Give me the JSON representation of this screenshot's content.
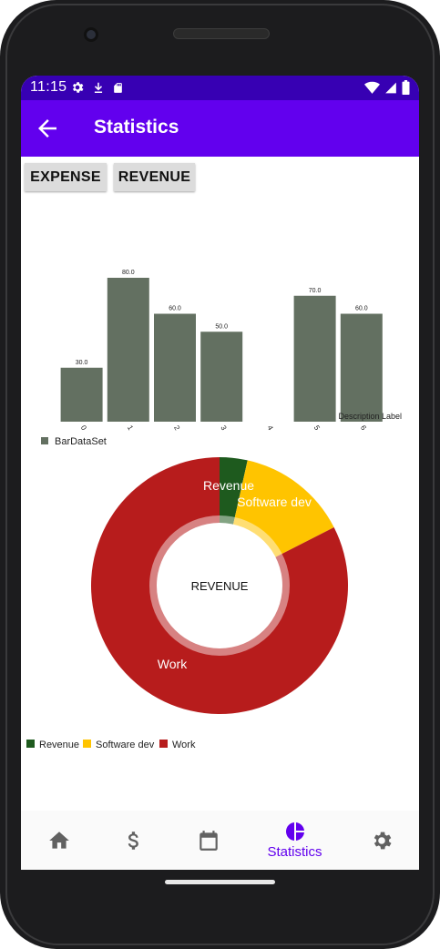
{
  "status_bar": {
    "time": "11:15",
    "icons_left": [
      "gear-icon",
      "download-icon",
      "sd-card-icon"
    ],
    "icons_right": [
      "wifi-icon",
      "signal-icon",
      "battery-icon"
    ]
  },
  "app_bar": {
    "title": "Statistics",
    "back_icon": "arrow-left-icon"
  },
  "toggle_buttons": [
    {
      "label": "EXPENSE"
    },
    {
      "label": "REVENUE"
    }
  ],
  "colors": {
    "primary": "#6200ee",
    "primary_dark": "#3700b3",
    "bar": "#637061",
    "revenue": "#1e5a1e",
    "software_dev": "#ffc400",
    "work": "#b71c1c"
  },
  "chart_data": [
    {
      "type": "bar",
      "categories": [
        "0",
        "1",
        "2",
        "3",
        "4",
        "5",
        "6"
      ],
      "values": [
        30.0,
        80.0,
        60.0,
        50.0,
        null,
        70.0,
        60.0
      ],
      "value_labels": [
        "30.0",
        "80.0",
        "60.0",
        "50.0",
        "",
        "70.0",
        "60.0"
      ],
      "ylim": [
        0,
        80
      ],
      "description": "Description Label",
      "legend": [
        {
          "name": "BarDataSet",
          "color": "#637061"
        }
      ],
      "legend_placement": "bottom-left"
    },
    {
      "type": "pie",
      "center_text": "REVENUE",
      "slices": [
        {
          "label": "Revenue",
          "value": 3.5,
          "color": "#1e5a1e"
        },
        {
          "label": "Software dev",
          "value": 14,
          "color": "#ffc400"
        },
        {
          "label": "Work",
          "value": 82.5,
          "color": "#b71c1c"
        }
      ],
      "legend": [
        {
          "name": "Revenue",
          "color": "#1e5a1e"
        },
        {
          "name": "Software dev",
          "color": "#ffc400"
        },
        {
          "name": "Work",
          "color": "#b71c1c"
        }
      ],
      "legend_placement": "bottom-left"
    }
  ],
  "bottom_nav": {
    "items": [
      {
        "icon": "home-icon",
        "label": ""
      },
      {
        "icon": "dollar-icon",
        "label": ""
      },
      {
        "icon": "calendar-icon",
        "label": ""
      },
      {
        "icon": "pie-chart-icon",
        "label": "Statistics",
        "active": true
      },
      {
        "icon": "settings-icon",
        "label": ""
      }
    ]
  }
}
